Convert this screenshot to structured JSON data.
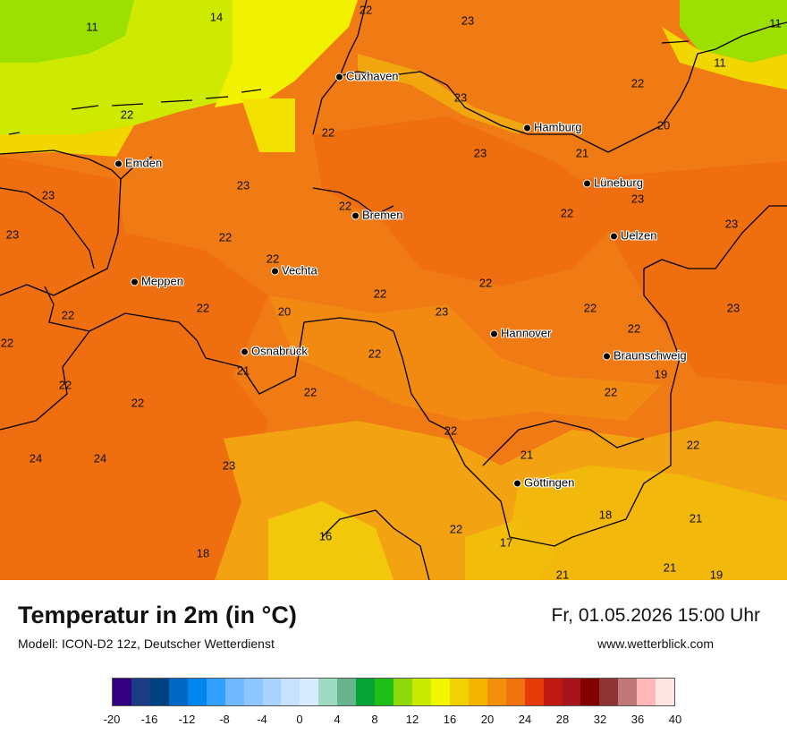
{
  "title": "Temperatur in 2m (in °C)",
  "model": "Modell: ICON-D2 12z, Deutscher Wetterdienst",
  "date": "Fr, 01.05.2026 15:00 Uhr",
  "site": "www.wetterblick.com",
  "cities": [
    {
      "name": "Cuxhaven"
    },
    {
      "name": "Hamburg"
    },
    {
      "name": "Emden"
    },
    {
      "name": "Lüneburg"
    },
    {
      "name": "Bremen"
    },
    {
      "name": "Uelzen"
    },
    {
      "name": "Vechta"
    },
    {
      "name": "Meppen"
    },
    {
      "name": "Hannover"
    },
    {
      "name": "Osnabrück"
    },
    {
      "name": "Braunschweig"
    },
    {
      "name": "Göttingen"
    }
  ],
  "values": [
    "11",
    "14",
    "22",
    "23",
    "11",
    "11",
    "22",
    "23",
    "22",
    "20",
    "22",
    "23",
    "21",
    "23",
    "22",
    "23",
    "22",
    "23",
    "22",
    "22",
    "23",
    "22",
    "23",
    "22",
    "20",
    "22",
    "23",
    "22",
    "23",
    "22",
    "22",
    "21",
    "22",
    "22",
    "22",
    "19",
    "22",
    "22",
    "24",
    "24",
    "23",
    "22",
    "21",
    "22",
    "18",
    "21",
    "22",
    "16",
    "17",
    "18",
    "21",
    "22",
    "21",
    "19"
  ],
  "legend": {
    "colors": [
      "#33007f",
      "#1a3c82",
      "#004182",
      "#0068c4",
      "#0087ef",
      "#339fff",
      "#70b9ff",
      "#8ec6ff",
      "#a9d3ff",
      "#c7e2ff",
      "#d8ebff",
      "#9edbc0",
      "#68b48c",
      "#06a336",
      "#1fbf17",
      "#8fd90a",
      "#c8ea00",
      "#f2f700",
      "#f2d100",
      "#f3b500",
      "#f2900e",
      "#f1730f",
      "#e53b0b",
      "#c01914",
      "#a8141b",
      "#820000",
      "#8f3434",
      "#c07777",
      "#ffb8b8",
      "#ffe4e4"
    ],
    "ticks": [
      "-20",
      "-16",
      "-12",
      "-8",
      "-4",
      "0",
      "4",
      "8",
      "12",
      "16",
      "20",
      "24",
      "28",
      "32",
      "36",
      "40"
    ]
  }
}
